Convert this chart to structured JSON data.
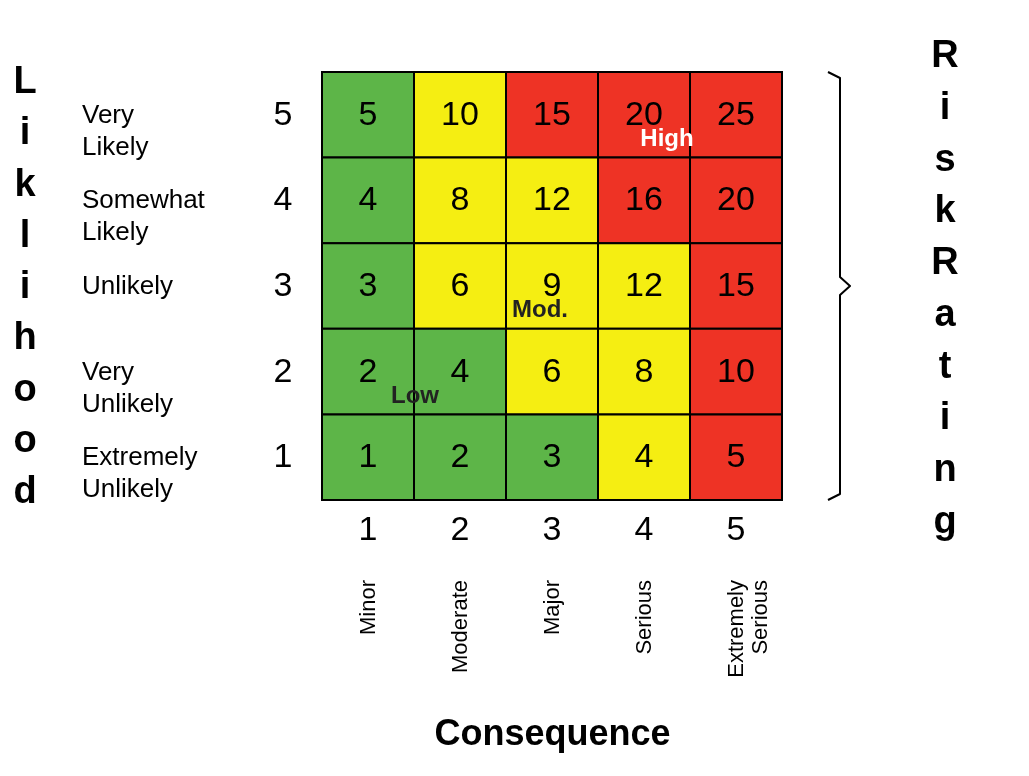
{
  "chart_data": {
    "type": "heatmap",
    "xlabel": "Consequence",
    "ylabel": "Liklihood",
    "y2label": "Risk Rating",
    "categories": [
      "1",
      "2",
      "3",
      "4",
      "5"
    ],
    "y_categories": [
      "5",
      "4",
      "3",
      "2",
      "1"
    ],
    "y2_categories": [
      "Very Likely",
      "Somewhat Likely",
      "Unlikely",
      "Very Unlikely",
      "Extremely Unlikely"
    ],
    "cells": [
      [
        5,
        10,
        15,
        20,
        25
      ],
      [
        4,
        8,
        12,
        16,
        20
      ],
      [
        3,
        6,
        9,
        12,
        15
      ],
      [
        2,
        4,
        6,
        8,
        10
      ],
      [
        1,
        2,
        3,
        4,
        5
      ]
    ],
    "colors": [
      [
        "#5db548",
        "#f5ee12",
        "#ee3325",
        "#ee3325",
        "#ee3325"
      ],
      [
        "#5db548",
        "#f5ee12",
        "#f5ee12",
        "#ee3325",
        "#ee3325"
      ],
      [
        "#5db548",
        "#f5ee12",
        "#f5ee12",
        "#f5ee12",
        "#ee3325"
      ],
      [
        "#5db548",
        "#5db548",
        "#f5ee12",
        "#f5ee12",
        "#ee3325"
      ],
      [
        "#5db548",
        "#5db548",
        "#5db548",
        "#f5ee12",
        "#ee3325"
      ]
    ],
    "data_labels": true,
    "annotations": [
      "Minor",
      "Moderate",
      "Major",
      "Serious",
      "Extremely Serious",
      "High",
      "Mod.",
      "Low"
    ]
  }
}
